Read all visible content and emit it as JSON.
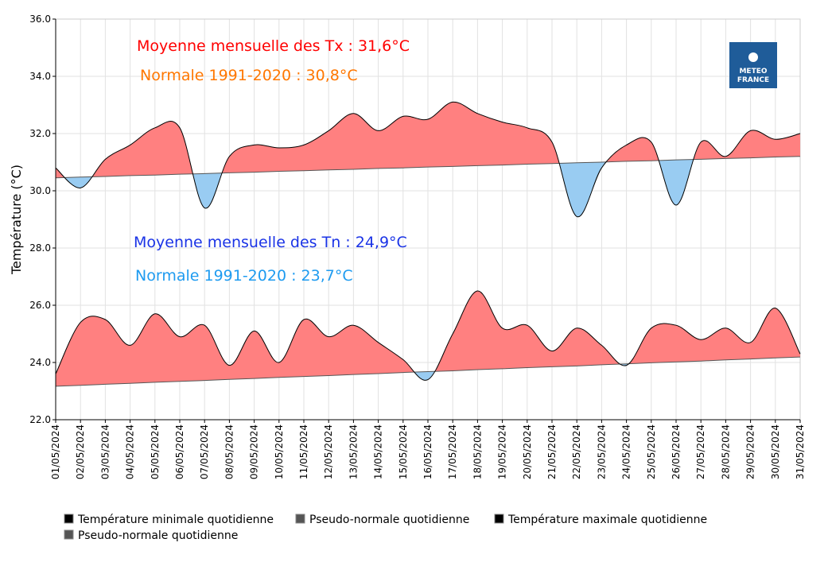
{
  "chart_data": {
    "type": "line",
    "y_label": "Température (°C)",
    "categories": [
      "01/05/2024",
      "02/05/2024",
      "03/05/2024",
      "04/05/2024",
      "05/05/2024",
      "06/05/2024",
      "07/05/2024",
      "08/05/2024",
      "09/05/2024",
      "10/05/2024",
      "11/05/2024",
      "12/05/2024",
      "13/05/2024",
      "14/05/2024",
      "15/05/2024",
      "16/05/2024",
      "17/05/2024",
      "18/05/2024",
      "19/05/2024",
      "20/05/2024",
      "21/05/2024",
      "22/05/2024",
      "23/05/2024",
      "24/05/2024",
      "25/05/2024",
      "26/05/2024",
      "27/05/2024",
      "28/05/2024",
      "29/05/2024",
      "30/05/2024",
      "31/05/2024"
    ],
    "series": [
      {
        "name": "Température minimale quotidienne",
        "color": "#000000",
        "values": [
          23.6,
          25.4,
          25.5,
          24.6,
          25.7,
          24.9,
          25.3,
          23.9,
          25.1,
          24.0,
          25.5,
          24.9,
          25.3,
          24.7,
          24.1,
          23.4,
          25.0,
          26.5,
          25.2,
          25.3,
          24.4,
          25.2,
          24.6,
          23.9,
          25.2,
          25.3,
          24.8,
          25.2,
          24.7,
          25.9,
          24.3
        ]
      },
      {
        "name": "Pseudo-normale quotidienne",
        "color": "#555555",
        "values": [
          23.17,
          23.2,
          23.24,
          23.27,
          23.31,
          23.34,
          23.37,
          23.41,
          23.44,
          23.48,
          23.51,
          23.54,
          23.58,
          23.61,
          23.65,
          23.68,
          23.71,
          23.75,
          23.78,
          23.82,
          23.85,
          23.88,
          23.92,
          23.95,
          23.99,
          24.02,
          24.05,
          24.09,
          24.12,
          24.16,
          24.19
        ]
      },
      {
        "name": "Température maximale quotidienne",
        "color": "#000000",
        "values": [
          30.8,
          30.1,
          31.1,
          31.6,
          32.2,
          32.2,
          29.4,
          31.2,
          31.6,
          31.5,
          31.6,
          32.1,
          32.7,
          32.1,
          32.6,
          32.5,
          33.1,
          32.7,
          32.4,
          32.2,
          31.7,
          29.1,
          30.8,
          31.6,
          31.7,
          29.5,
          31.7,
          31.2,
          32.1,
          31.8,
          32.0
        ]
      },
      {
        "name": "Pseudo-normale quotidienne",
        "color": "#555555",
        "values": [
          30.45,
          30.48,
          30.5,
          30.53,
          30.55,
          30.58,
          30.6,
          30.63,
          30.65,
          30.68,
          30.7,
          30.73,
          30.75,
          30.78,
          30.8,
          30.83,
          30.85,
          30.88,
          30.9,
          30.93,
          30.95,
          30.98,
          31.0,
          31.03,
          31.05,
          31.08,
          31.1,
          31.13,
          31.15,
          31.18,
          31.2
        ]
      }
    ],
    "fill_above": "#ff8080",
    "fill_below": "#99ccf2",
    "ylim": [
      22,
      36
    ],
    "yticks": [
      {
        "value": 22,
        "label": "22.0"
      },
      {
        "value": 24,
        "label": "24.0"
      },
      {
        "value": 26,
        "label": "26.0"
      },
      {
        "value": 28,
        "label": "28.0"
      },
      {
        "value": 30,
        "label": "30.0"
      },
      {
        "value": 32,
        "label": "32.0"
      },
      {
        "value": 34,
        "label": "34.0"
      },
      {
        "value": 36,
        "label": "36.0"
      }
    ],
    "grid": true,
    "annotations": [
      {
        "text": "Moyenne mensuelle des Tx : 31,6°C",
        "color": "#ff0000"
      },
      {
        "text": "Normale 1991-2020 : 30,8°C",
        "color": "#ff7700"
      },
      {
        "text": "Moyenne mensuelle des Tn : 24,9°C",
        "color": "#1a33e6"
      },
      {
        "text": "Normale 1991-2020 : 23,7°C",
        "color": "#1e9bf0"
      }
    ]
  },
  "logo": [
    "METEO",
    "FRANCE"
  ]
}
